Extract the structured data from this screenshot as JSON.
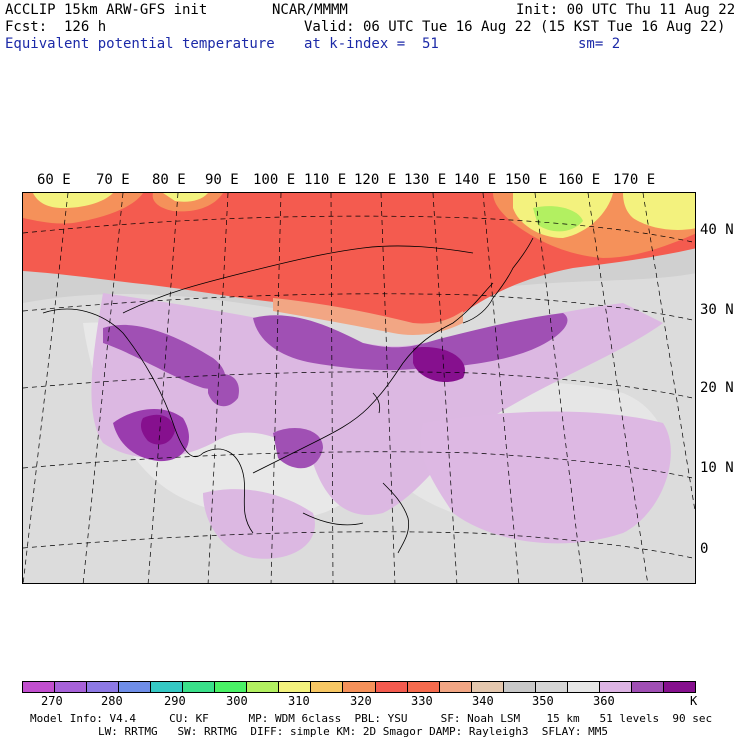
{
  "header": {
    "model": "ACCLIP 15km ARW-GFS init",
    "center": "NCAR/MMMM",
    "init": "Init: 00 UTC Thu 11 Aug 22",
    "fcst": "Fcst:  126 h",
    "valid": "Valid: 06 UTC Tue 16 Aug 22 (15 KST Tue 16 Aug 22)",
    "field": "Equivalent potential temperature",
    "level": "at k-index =  51",
    "smooth": "sm= 2"
  },
  "map": {
    "lon_labels": [
      "60 E",
      "70 E",
      "80 E",
      "90 E",
      "100 E",
      "110 E",
      "120 E",
      "130 E",
      "140 E",
      "150 E",
      "160 E",
      "170 E"
    ],
    "lat_labels": [
      "40 N",
      "30 N",
      "20 N",
      "10 N",
      "0"
    ]
  },
  "colorbar": {
    "colors": [
      "#c24fcf",
      "#a762d9",
      "#8d79e4",
      "#6f8ee8",
      "#35c8c4",
      "#3ae08a",
      "#49f266",
      "#b2f061",
      "#f3f27e",
      "#f7c764",
      "#f5915a",
      "#f45b4f",
      "#f56b4e",
      "#f2a684",
      "#e4c7ae",
      "#c8c8c8",
      "#d5d5d5",
      "#e6e6e6",
      "#ddb4e4",
      "#a04fb4",
      "#86108e"
    ],
    "tick_labels": [
      "270",
      "280",
      "290",
      "300",
      "310",
      "320",
      "330",
      "340",
      "350",
      "360",
      "K"
    ]
  },
  "footer": {
    "line1": "Model Info: V4.4     CU: KF      MP: WDM 6class  PBL: YSU     SF: Noah LSM    15 km   51 levels  90 sec",
    "line2": "LW: RRTMG   SW: RRTMG  DIFF: simple KM: 2D Smagor DAMP: Rayleigh3  SFLAY: MM5"
  }
}
